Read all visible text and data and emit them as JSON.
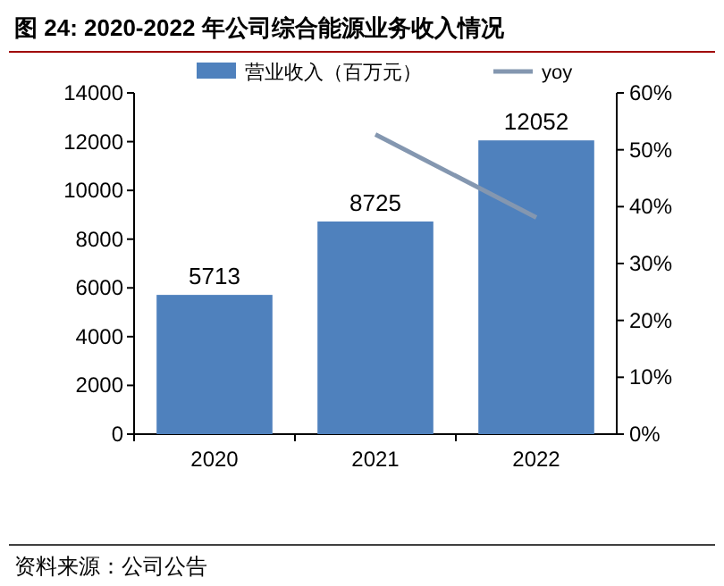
{
  "chart_data": {
    "type": "bar",
    "title": "图 24:  2020-2022 年公司综合能源业务收入情况",
    "categories": [
      "2020",
      "2021",
      "2022"
    ],
    "series": [
      {
        "name": "营业收入（百万元）",
        "color": "#4f81bd",
        "values": [
          5713,
          8725,
          12052
        ],
        "value_labels": [
          "5713",
          "8725",
          "12052"
        ]
      },
      {
        "name": "yoy",
        "type": "line",
        "axis": "y2",
        "color": "#8497b0",
        "values": [
          null,
          52.7,
          38.1
        ]
      }
    ],
    "ylim": [
      0,
      14000
    ],
    "yticks": [
      0,
      2000,
      4000,
      6000,
      8000,
      10000,
      12000,
      14000
    ],
    "y2lim": [
      0,
      60
    ],
    "y2ticks": [
      {
        "value": 0,
        "label": "0%"
      },
      {
        "value": 10,
        "label": "10%"
      },
      {
        "value": 20,
        "label": "20%"
      },
      {
        "value": 30,
        "label": "30%"
      },
      {
        "value": 40,
        "label": "40%"
      },
      {
        "value": 50,
        "label": "50%"
      },
      {
        "value": 60,
        "label": "60%"
      }
    ],
    "legend": "top",
    "grid": false,
    "annotations": [
      "资料来源：公司公告"
    ]
  }
}
